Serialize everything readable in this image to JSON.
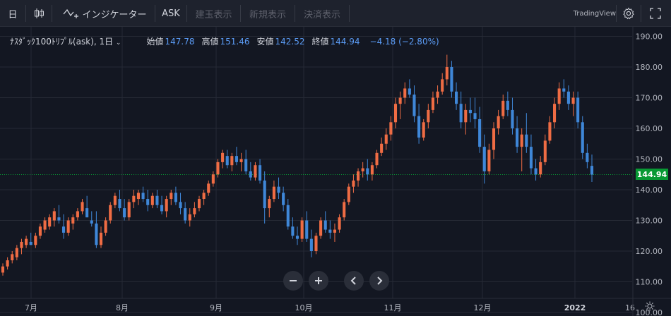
{
  "toolbar": {
    "interval": "日",
    "indicators_label": "インジケーター",
    "ask_label": "ASK",
    "position_label": "建玉表示",
    "new_order_label": "新規表示",
    "settle_label": "決済表示",
    "brand": "TradingView"
  },
  "legend": {
    "symbol": "ﾅｽﾀﾞｯｸ100ﾄﾘﾌﾟﾙ(ask), 1日",
    "open_label": "始値",
    "open": "147.78",
    "high_label": "高値",
    "high": "151.46",
    "low_label": "安値",
    "low": "142.52",
    "close_label": "終値",
    "close": "144.94",
    "change": "−4.18 (−2.80%)"
  },
  "colors": {
    "up": "#ef6c44",
    "down": "#3f87d8",
    "background": "#131722",
    "grid": "#262a35",
    "last_price": "#089934"
  },
  "chart_data": {
    "type": "candlestick",
    "title": "",
    "xlabel": "",
    "ylabel": "",
    "ylim": [
      100,
      192
    ],
    "y_ticks": [
      "190.00",
      "180.00",
      "170.00",
      "160.00",
      "150.00",
      "140.00",
      "130.00",
      "120.00",
      "110.00",
      "100.00"
    ],
    "x_ticks": [
      "7月",
      "8月",
      "9月",
      "10月",
      "11月",
      "12月",
      "2022",
      "16"
    ],
    "last_price": "144.94",
    "grid": true,
    "series": [
      {
        "name": "",
        "ohlc": [
          [
            113,
            116,
            112,
            115
          ],
          [
            115,
            118,
            114,
            117
          ],
          [
            117,
            120,
            116,
            119
          ],
          [
            118,
            122,
            117,
            121
          ],
          [
            121,
            124,
            119,
            123
          ],
          [
            122,
            125,
            121,
            124
          ],
          [
            123,
            126,
            122,
            122
          ],
          [
            122,
            126,
            121,
            125
          ],
          [
            125,
            129,
            124,
            128
          ],
          [
            127,
            131,
            126,
            130
          ],
          [
            128,
            132,
            127,
            131
          ],
          [
            130,
            134,
            128,
            133
          ],
          [
            131,
            135,
            129,
            130
          ],
          [
            128,
            132,
            124,
            126
          ],
          [
            126,
            131,
            125,
            130
          ],
          [
            129,
            132,
            127,
            131
          ],
          [
            131,
            134,
            130,
            133
          ],
          [
            133,
            137,
            132,
            136
          ],
          [
            134,
            138,
            131,
            131
          ],
          [
            130,
            133,
            128,
            129
          ],
          [
            129,
            133,
            121,
            122
          ],
          [
            122,
            128,
            121,
            126
          ],
          [
            126,
            131,
            125,
            130
          ],
          [
            130,
            136,
            129,
            135
          ],
          [
            135,
            139,
            134,
            138
          ],
          [
            137,
            140,
            133,
            134
          ],
          [
            134,
            137,
            130,
            131
          ],
          [
            131,
            137,
            130,
            136
          ],
          [
            136,
            140,
            134,
            138
          ],
          [
            137,
            140,
            135,
            139
          ],
          [
            139,
            141,
            136,
            137
          ],
          [
            137,
            140,
            133,
            135
          ],
          [
            135,
            139,
            134,
            138
          ],
          [
            138,
            140,
            134,
            135
          ],
          [
            135,
            138,
            132,
            133
          ],
          [
            133,
            138,
            131,
            137
          ],
          [
            137,
            140,
            135,
            139
          ],
          [
            139,
            141,
            135,
            136
          ],
          [
            136,
            139,
            132,
            134
          ],
          [
            134,
            136,
            129,
            130
          ],
          [
            130,
            134,
            128,
            132
          ],
          [
            132,
            136,
            131,
            134
          ],
          [
            134,
            138,
            133,
            137
          ],
          [
            137,
            140,
            135,
            139
          ],
          [
            139,
            143,
            138,
            142
          ],
          [
            142,
            146,
            141,
            145
          ],
          [
            145,
            150,
            144,
            149
          ],
          [
            149,
            153,
            147,
            152
          ],
          [
            151,
            153,
            147,
            148
          ],
          [
            148,
            152,
            146,
            151
          ],
          [
            151,
            154,
            148,
            149
          ],
          [
            149,
            152,
            146,
            150
          ],
          [
            150,
            153,
            145,
            146
          ],
          [
            146,
            149,
            143,
            144
          ],
          [
            144,
            149,
            143,
            148
          ],
          [
            148,
            150,
            142,
            143
          ],
          [
            143,
            146,
            129,
            134
          ],
          [
            134,
            138,
            131,
            137
          ],
          [
            137,
            143,
            136,
            141
          ],
          [
            141,
            144,
            137,
            139
          ],
          [
            139,
            141,
            133,
            135
          ],
          [
            135,
            137,
            127,
            128
          ],
          [
            128,
            131,
            124,
            125
          ],
          [
            125,
            128,
            122,
            124
          ],
          [
            124,
            131,
            123,
            130
          ],
          [
            130,
            133,
            123,
            124
          ],
          [
            124,
            127,
            118,
            120
          ],
          [
            120,
            126,
            119,
            125
          ],
          [
            125,
            131,
            124,
            130
          ],
          [
            130,
            133,
            126,
            127
          ],
          [
            127,
            130,
            124,
            126
          ],
          [
            126,
            129,
            123,
            127
          ],
          [
            127,
            132,
            126,
            131
          ],
          [
            131,
            137,
            130,
            136
          ],
          [
            136,
            142,
            135,
            141
          ],
          [
            141,
            145,
            139,
            143
          ],
          [
            143,
            147,
            141,
            146
          ],
          [
            146,
            149,
            144,
            147
          ],
          [
            147,
            150,
            143,
            145
          ],
          [
            145,
            149,
            143,
            148
          ],
          [
            148,
            153,
            147,
            152
          ],
          [
            152,
            157,
            151,
            155
          ],
          [
            155,
            160,
            153,
            158
          ],
          [
            158,
            164,
            156,
            162
          ],
          [
            162,
            170,
            160,
            168
          ],
          [
            168,
            172,
            163,
            170
          ],
          [
            170,
            175,
            168,
            173
          ],
          [
            173,
            176,
            170,
            171
          ],
          [
            171,
            174,
            162,
            164
          ],
          [
            164,
            168,
            155,
            157
          ],
          [
            157,
            163,
            156,
            162
          ],
          [
            162,
            168,
            160,
            166
          ],
          [
            166,
            172,
            165,
            170
          ],
          [
            170,
            174,
            168,
            172
          ],
          [
            172,
            178,
            171,
            176
          ],
          [
            176,
            184,
            174,
            180
          ],
          [
            180,
            182,
            170,
            172
          ],
          [
            172,
            175,
            166,
            168
          ],
          [
            168,
            172,
            160,
            162
          ],
          [
            162,
            168,
            158,
            166
          ],
          [
            166,
            170,
            162,
            165
          ],
          [
            165,
            170,
            160,
            163
          ],
          [
            163,
            167,
            152,
            154
          ],
          [
            154,
            158,
            142,
            146
          ],
          [
            146,
            155,
            145,
            153
          ],
          [
            153,
            162,
            150,
            160
          ],
          [
            160,
            166,
            158,
            164
          ],
          [
            164,
            171,
            163,
            169
          ],
          [
            169,
            172,
            164,
            166
          ],
          [
            166,
            170,
            158,
            160
          ],
          [
            160,
            164,
            152,
            154
          ],
          [
            154,
            160,
            146,
            158
          ],
          [
            158,
            165,
            152,
            154
          ],
          [
            154,
            158,
            145,
            147
          ],
          [
            147,
            150,
            143,
            145
          ],
          [
            145,
            151,
            144,
            149
          ],
          [
            149,
            158,
            148,
            156
          ],
          [
            156,
            164,
            155,
            162
          ],
          [
            162,
            170,
            160,
            168
          ],
          [
            168,
            175,
            166,
            173
          ],
          [
            173,
            176,
            170,
            172
          ],
          [
            172,
            174,
            166,
            168
          ],
          [
            168,
            172,
            164,
            170
          ],
          [
            170,
            172,
            160,
            162
          ],
          [
            162,
            164,
            150,
            152
          ],
          [
            152,
            155,
            147,
            149
          ],
          [
            147.78,
            151.46,
            142.52,
            144.94
          ]
        ]
      }
    ]
  }
}
